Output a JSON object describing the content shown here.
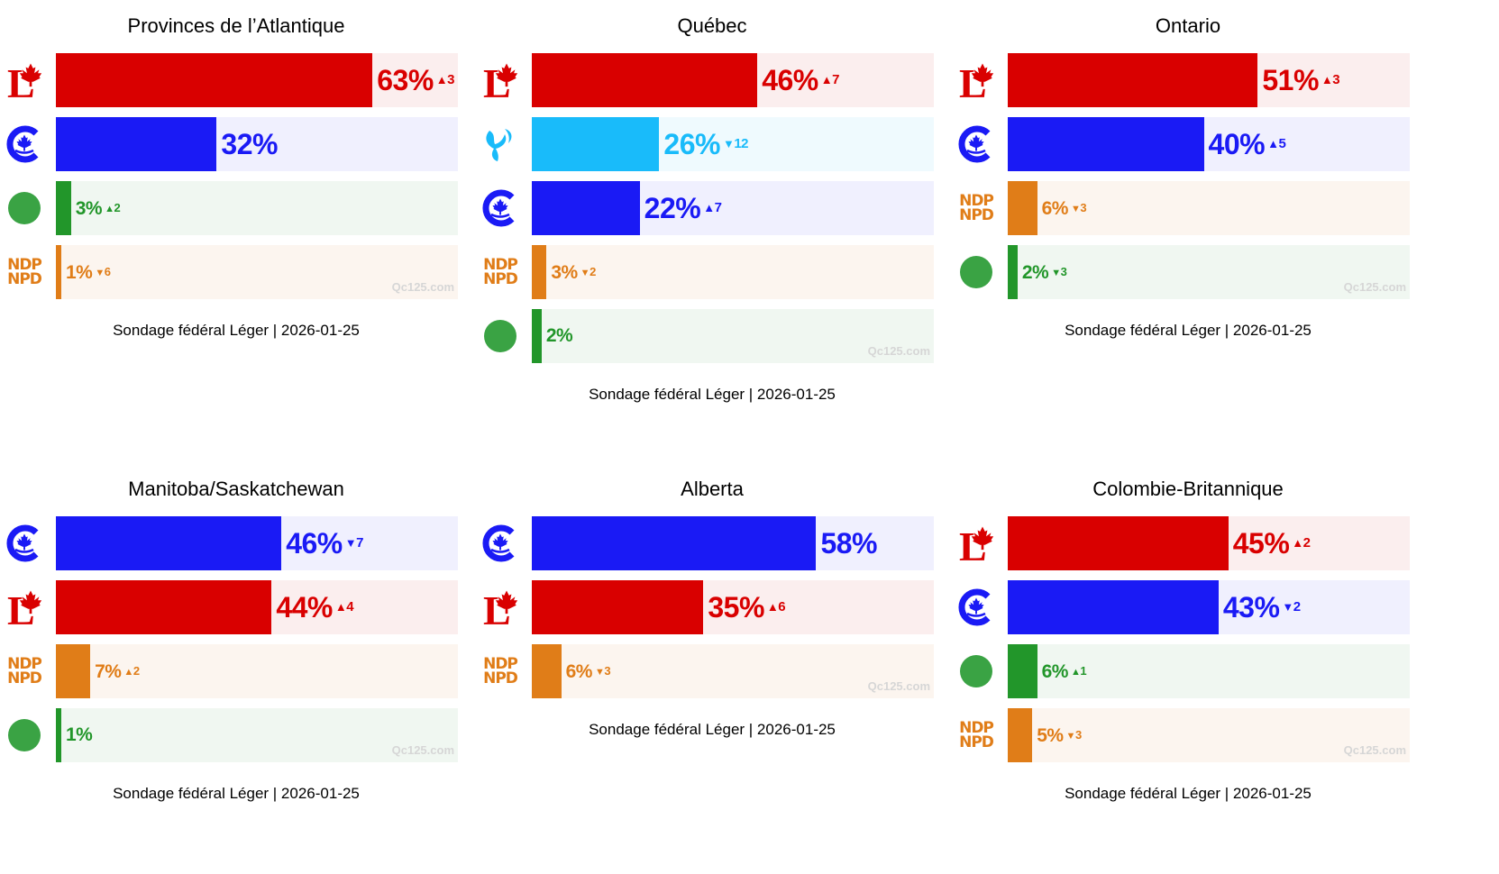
{
  "colors": {
    "LPC": {
      "bar": "#d90000",
      "bg": "#fbeeee",
      "text": "#d90000"
    },
    "CPC": {
      "bar": "#1a1af5",
      "bg": "#f0f0fe",
      "text": "#1a1af5"
    },
    "BQ": {
      "bar": "#19bbfa",
      "bg": "#effafe",
      "text": "#19bbfa"
    },
    "NDP": {
      "bar": "#e07d18",
      "bg": "#fcf5ef",
      "text": "#e07d18"
    },
    "GPC": {
      "bar": "#22962a",
      "bg": "#f0f7f1",
      "text": "#22962a"
    }
  },
  "logos": {
    "LPC": "liberal-logo-icon",
    "CPC": "conservative-logo-icon",
    "BQ": "bloc-logo-icon",
    "NDP": {
      "name": "ndp-logo-icon",
      "line1": "NDP",
      "line2": "NPD"
    },
    "GPC": "green-logo-icon"
  },
  "chart_data": [
    {
      "type": "bar",
      "title": "Provinces de l’Atlantique",
      "footer": "Sondage fédéral Léger | 2026-01-25",
      "watermark": "Qc125.com",
      "xlim": [
        0,
        80
      ],
      "bars": [
        {
          "party": "LPC",
          "value": 63,
          "label": "63%",
          "delta": "3",
          "dir": "up"
        },
        {
          "party": "CPC",
          "value": 32,
          "label": "32%",
          "delta": "",
          "dir": ""
        },
        {
          "party": "GPC",
          "value": 3,
          "label": "3%",
          "delta": "2",
          "dir": "up"
        },
        {
          "party": "NDP",
          "value": 1,
          "label": "1%",
          "delta": "6",
          "dir": "down"
        }
      ]
    },
    {
      "type": "bar",
      "title": "Québec",
      "footer": "Sondage fédéral Léger | 2026-01-25",
      "watermark": "Qc125.com",
      "xlim": [
        0,
        82
      ],
      "bars": [
        {
          "party": "LPC",
          "value": 46,
          "label": "46%",
          "delta": "7",
          "dir": "up"
        },
        {
          "party": "BQ",
          "value": 26,
          "label": "26%",
          "delta": "12",
          "dir": "down"
        },
        {
          "party": "CPC",
          "value": 22,
          "label": "22%",
          "delta": "7",
          "dir": "up"
        },
        {
          "party": "NDP",
          "value": 3,
          "label": "3%",
          "delta": "2",
          "dir": "down"
        },
        {
          "party": "GPC",
          "value": 2,
          "label": "2%",
          "delta": "",
          "dir": ""
        }
      ]
    },
    {
      "type": "bar",
      "title": "Ontario",
      "footer": "Sondage fédéral Léger | 2026-01-25",
      "watermark": "Qc125.com",
      "xlim": [
        0,
        82
      ],
      "bars": [
        {
          "party": "LPC",
          "value": 51,
          "label": "51%",
          "delta": "3",
          "dir": "up"
        },
        {
          "party": "CPC",
          "value": 40,
          "label": "40%",
          "delta": "5",
          "dir": "up"
        },
        {
          "party": "NDP",
          "value": 6,
          "label": "6%",
          "delta": "3",
          "dir": "down"
        },
        {
          "party": "GPC",
          "value": 2,
          "label": "2%",
          "delta": "3",
          "dir": "down"
        }
      ]
    },
    {
      "type": "bar",
      "title": "Manitoba/Saskatchewan",
      "footer": "Sondage fédéral Léger | 2026-01-25",
      "watermark": "Qc125.com",
      "xlim": [
        0,
        82
      ],
      "bars": [
        {
          "party": "CPC",
          "value": 46,
          "label": "46%",
          "delta": "7",
          "dir": "down"
        },
        {
          "party": "LPC",
          "value": 44,
          "label": "44%",
          "delta": "4",
          "dir": "up"
        },
        {
          "party": "NDP",
          "value": 7,
          "label": "7%",
          "delta": "2",
          "dir": "up"
        },
        {
          "party": "GPC",
          "value": 1,
          "label": "1%",
          "delta": "",
          "dir": ""
        }
      ]
    },
    {
      "type": "bar",
      "title": "Alberta",
      "footer": "Sondage fédéral Léger | 2026-01-25",
      "watermark": "Qc125.com",
      "xlim": [
        0,
        82
      ],
      "bars": [
        {
          "party": "CPC",
          "value": 58,
          "label": "58%",
          "delta": "",
          "dir": ""
        },
        {
          "party": "LPC",
          "value": 35,
          "label": "35%",
          "delta": "6",
          "dir": "up"
        },
        {
          "party": "NDP",
          "value": 6,
          "label": "6%",
          "delta": "3",
          "dir": "down"
        }
      ]
    },
    {
      "type": "bar",
      "title": "Colombie-Britannique",
      "footer": "Sondage fédéral Léger | 2026-01-25",
      "watermark": "Qc125.com",
      "xlim": [
        0,
        82
      ],
      "bars": [
        {
          "party": "LPC",
          "value": 45,
          "label": "45%",
          "delta": "2",
          "dir": "up"
        },
        {
          "party": "CPC",
          "value": 43,
          "label": "43%",
          "delta": "2",
          "dir": "down"
        },
        {
          "party": "GPC",
          "value": 6,
          "label": "6%",
          "delta": "1",
          "dir": "up"
        },
        {
          "party": "NDP",
          "value": 5,
          "label": "5%",
          "delta": "3",
          "dir": "down"
        }
      ]
    }
  ]
}
